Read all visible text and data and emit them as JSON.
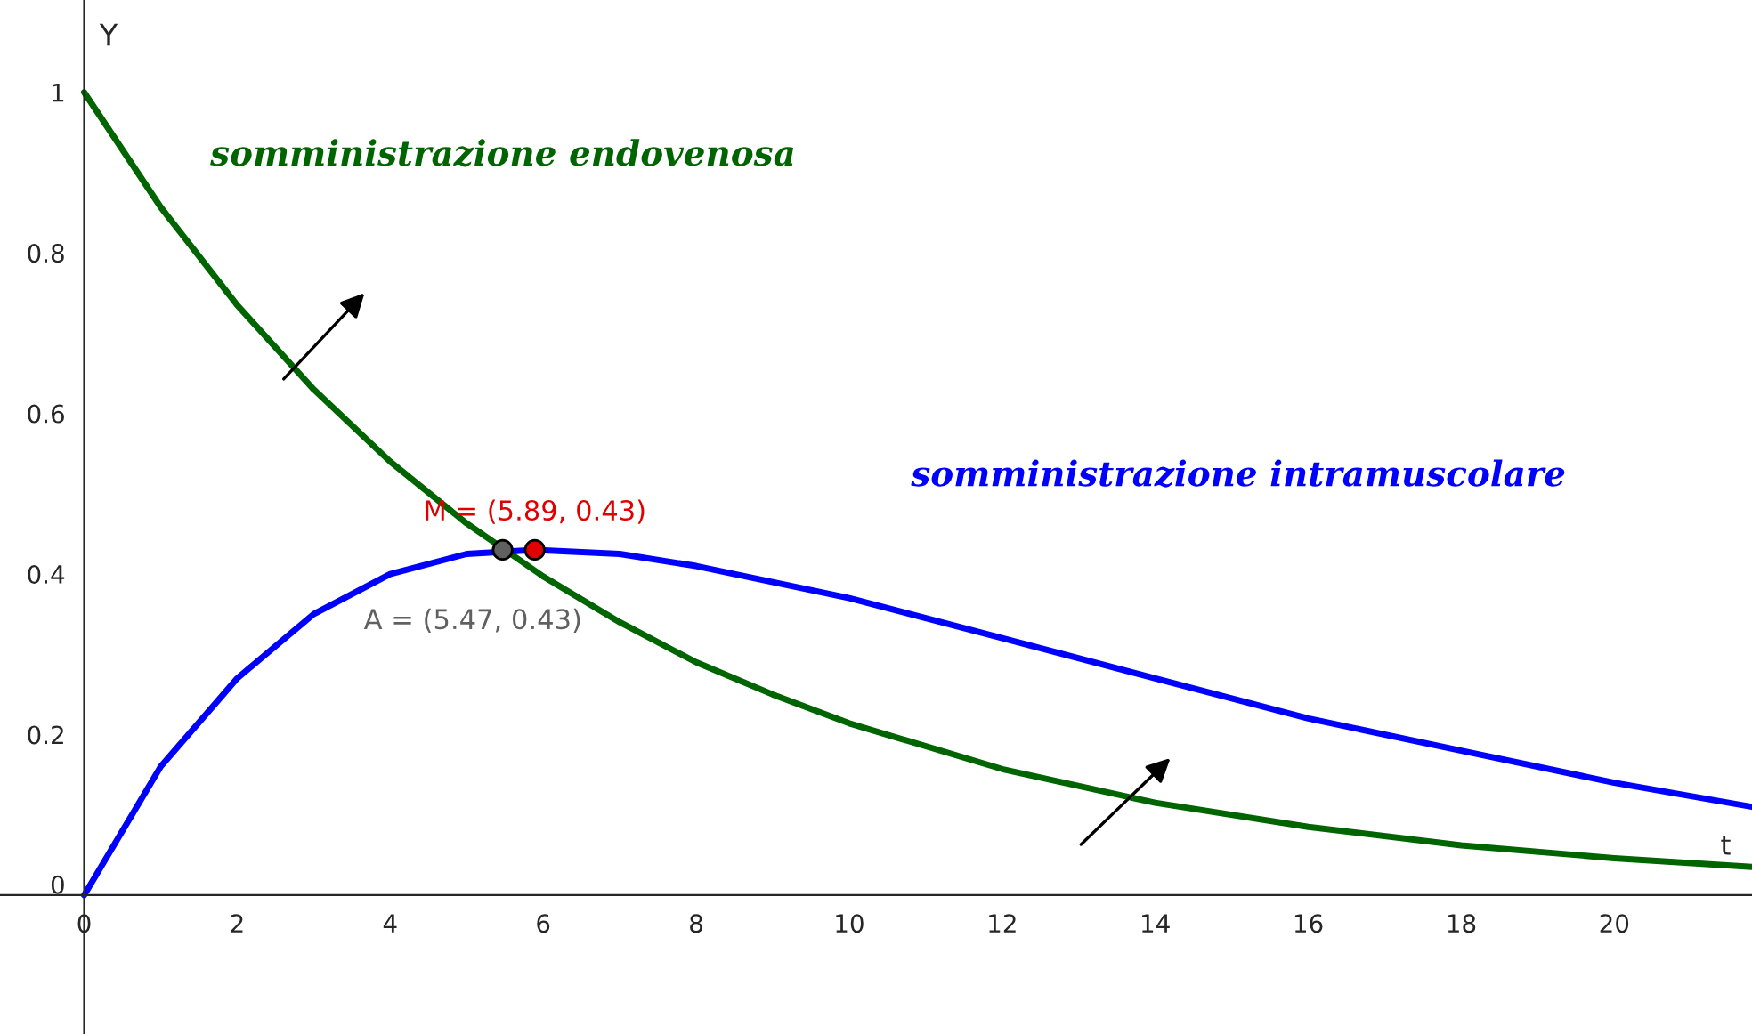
{
  "chart_data": {
    "type": "line",
    "xlabel": "t",
    "ylabel": "Y",
    "xlim": [
      -1.1,
      21.8
    ],
    "ylim": [
      -0.173,
      1.115
    ],
    "xticks": [
      0,
      2,
      4,
      6,
      8,
      10,
      12,
      14,
      16,
      18,
      20
    ],
    "yticks": [
      0,
      0.2,
      0.4,
      0.6,
      0.8,
      1
    ],
    "grid": false,
    "legend": false,
    "line_style": "solid",
    "series": [
      {
        "name": "somministrazione endovenosa",
        "color": "#006400",
        "x": [
          0,
          1,
          2,
          3,
          4,
          5,
          6,
          7,
          8,
          9,
          10,
          12,
          14,
          16,
          18,
          20,
          21.8
        ],
        "values": [
          1,
          0.857,
          0.735,
          0.63,
          0.54,
          0.463,
          0.397,
          0.34,
          0.29,
          0.25,
          0.214,
          0.157,
          0.115,
          0.085,
          0.062,
          0.046,
          0.035
        ]
      },
      {
        "name": "somministrazione intramuscolare",
        "color": "#0000ff",
        "x": [
          0,
          1,
          2,
          3,
          4,
          5,
          5.89,
          7,
          8,
          10,
          12,
          14,
          16,
          18,
          20,
          21.8
        ],
        "values": [
          0,
          0.16,
          0.27,
          0.35,
          0.4,
          0.425,
          0.43,
          0.425,
          0.41,
          0.37,
          0.32,
          0.27,
          0.22,
          0.18,
          0.14,
          0.11
        ]
      },
      {
        "type": "scatter",
        "marker": "circle",
        "color": "#606060",
        "x": [
          5.47
        ],
        "values": [
          0.43
        ]
      },
      {
        "type": "scatter",
        "marker": "circle",
        "color": "#e00000",
        "x": [
          5.89
        ],
        "values": [
          0.43
        ]
      }
    ],
    "annotations": [
      {
        "text": "A = (5.47, 0.43)",
        "x": 5.47,
        "y": 0.43
      },
      {
        "text": "M = (5.89, 0.43)",
        "x": 5.89,
        "y": 0.43
      }
    ]
  }
}
